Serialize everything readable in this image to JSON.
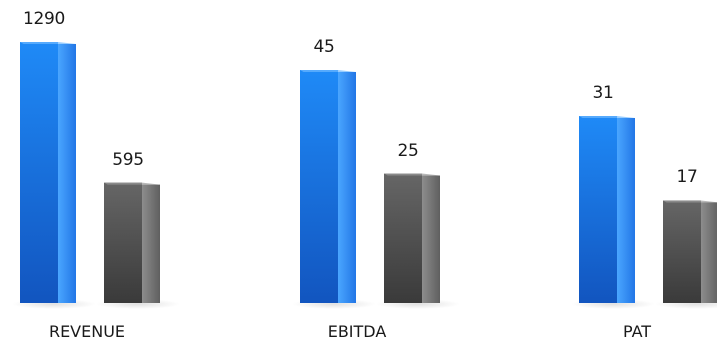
{
  "chart_data": [
    {
      "type": "bar",
      "categories": [
        "REVENUE"
      ],
      "series": [
        {
          "values": [
            1290
          ]
        },
        {
          "values": [
            595
          ]
        }
      ],
      "colors": [
        "#1f77e8",
        "#5b5b5b"
      ]
    },
    {
      "type": "bar",
      "categories": [
        "EBITDA"
      ],
      "series": [
        {
          "values": [
            45
          ]
        },
        {
          "values": [
            25
          ]
        }
      ],
      "colors": [
        "#1f77e8",
        "#5b5b5b"
      ]
    },
    {
      "type": "bar",
      "categories": [
        "PAT"
      ],
      "series": [
        {
          "values": [
            31
          ]
        },
        {
          "values": [
            17
          ]
        }
      ],
      "colors": [
        "#1f77e8",
        "#5b5b5b"
      ]
    }
  ]
}
